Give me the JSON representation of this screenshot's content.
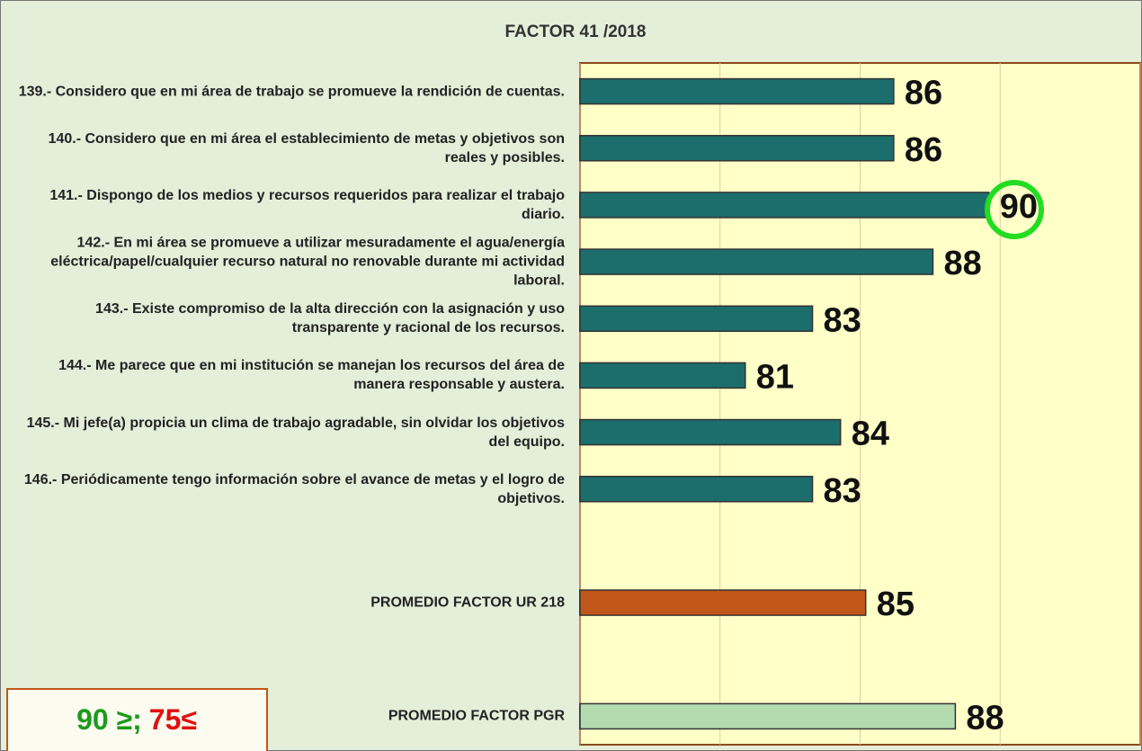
{
  "chart_data": {
    "type": "barh",
    "title": "FACTOR 41 /2018",
    "categories": [
      "139.- Considero que en mi área de trabajo se promueve la rendición de cuentas.",
      "140.- Considero que en mi área el establecimiento de metas y objetivos son reales y posibles.",
      "141.- Dispongo de los medios y recursos requeridos para realizar el trabajo diario.",
      "142.- En mi área se promueve a utilizar mesuradamente el agua/energía eléctrica/papel/cualquier recurso natural no renovable durante mi actividad laboral.",
      "143.- Existe compromiso de la alta dirección con la asignación y uso transparente y racional de los recursos.",
      "144.- Me parece que en mi institución se manejan los recursos del área de manera responsable y austera.",
      "145.- Mi jefe(a) propicia un clima de trabajo agradable, sin olvidar los objetivos del equipo.",
      "146.- Periódicamente tengo información sobre el avance de metas y el logro de objetivos.",
      null,
      "PROMEDIO FACTOR UR 218",
      null,
      "PROMEDIO FACTOR PGR"
    ],
    "values": [
      86.2,
      86.2,
      89.6,
      87.6,
      83.3,
      80.9,
      84.3,
      83.3,
      null,
      85.2,
      null,
      88.4
    ],
    "value_labels": [
      "86",
      "86",
      "90",
      "88",
      "83",
      "81",
      "84",
      "83",
      null,
      "85",
      null,
      "88"
    ],
    "colors": [
      "#1b6e6c",
      "#1b6e6c",
      "#1b6e6c",
      "#1b6e6c",
      "#1b6e6c",
      "#1b6e6c",
      "#1b6e6c",
      "#1b6e6c",
      null,
      "#c0561a",
      null,
      "#b4dbb0"
    ],
    "xlim": [
      75,
      95
    ],
    "xticks": [
      75,
      80,
      85,
      90,
      95
    ],
    "grid": true,
    "legend_text": {
      "high": "90 ≥;",
      "low": "75≤"
    }
  }
}
